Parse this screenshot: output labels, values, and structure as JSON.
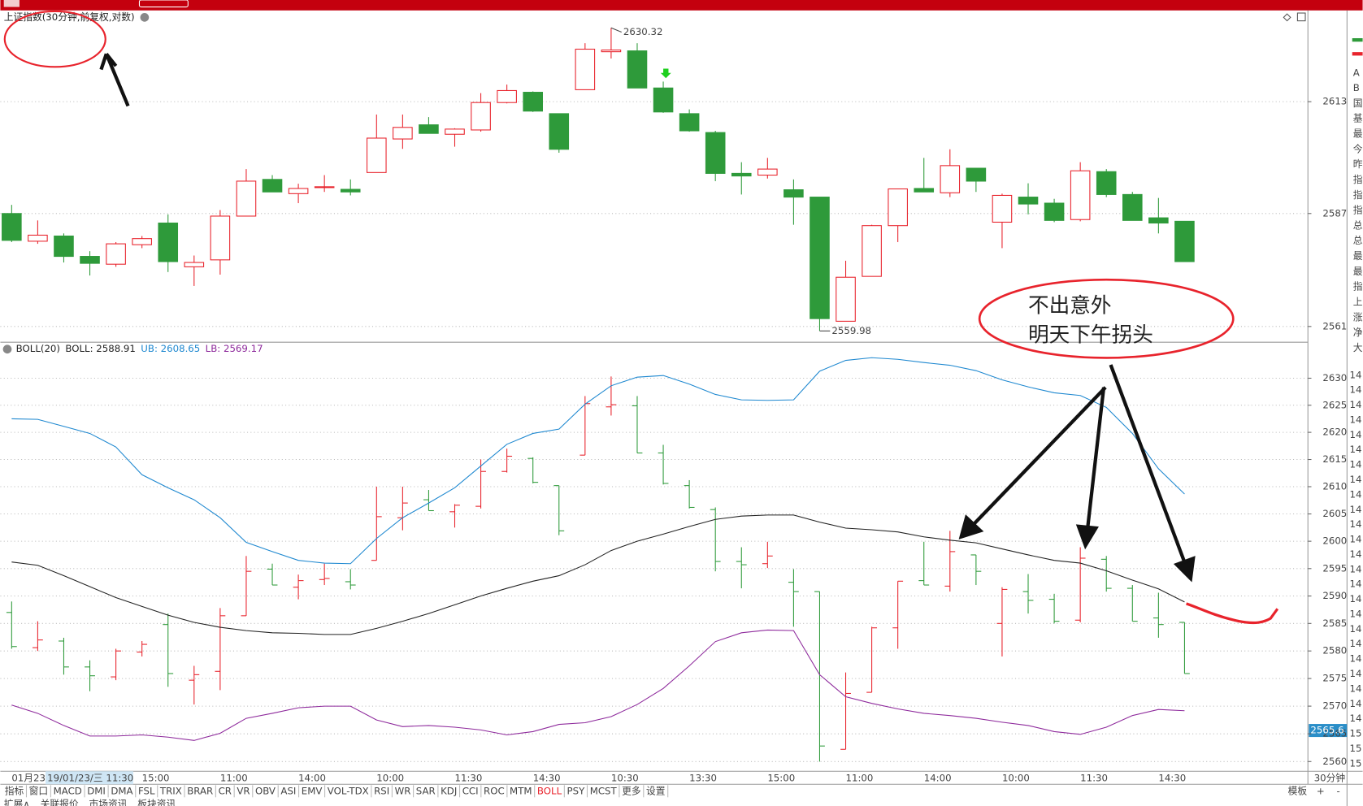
{
  "window": {
    "title": "上证指数(30分钟,前复权,对数)",
    "cursor_date": "19/01/23/三 11:30",
    "period": "30分钟",
    "tabs": [
      "指标",
      "窗口",
      "MACD",
      "DMI",
      "DMA",
      "FSL",
      "TRIX",
      "BRAR",
      "CR",
      "VR",
      "OBV",
      "ASI",
      "EMV",
      "VOL-TDX",
      "RSI",
      "WR",
      "SAR",
      "KDJ",
      "CCI",
      "ROC",
      "MTM",
      "BOLL",
      "PSY",
      "MCST",
      "更多",
      "设置"
    ],
    "active_tab": "BOLL",
    "template": "模板",
    "plus": "+",
    "minus": "-",
    "bottom_tabs": [
      "扩展∧",
      "关联报价",
      "市场资讯",
      "板块资讯"
    ],
    "side_panel": [
      "A",
      "B",
      "国",
      "基",
      "最",
      "今",
      "昨",
      "指",
      "指",
      "指",
      "总",
      "总",
      "最",
      "最",
      "指",
      "上",
      "涨",
      "净",
      "大"
    ],
    "side_numbers": [
      "14",
      "14",
      "14",
      "14",
      "14",
      "14",
      "14",
      "14",
      "14",
      "14",
      "14",
      "14",
      "14",
      "14",
      "14",
      "14",
      "14",
      "14",
      "14",
      "14",
      "14",
      "14",
      "14",
      "14",
      "15",
      "15",
      "15"
    ],
    "annotation": [
      "不出意外",
      "明天下午拐头"
    ]
  },
  "chart_data": [
    {
      "type": "candlestick",
      "log_scale": true,
      "up_color": "#e8232c",
      "down_color": "#2e9a3a",
      "categories": [
        "01月23",
        null,
        null,
        null,
        null,
        "15:00",
        null,
        null,
        "11:00",
        null,
        null,
        "14:00",
        null,
        null,
        "10:00",
        null,
        null,
        "11:30",
        null,
        null,
        "14:30",
        null,
        null,
        "10:30",
        null,
        null,
        "13:30",
        null,
        null,
        "15:00",
        null,
        null,
        "11:00",
        null,
        null,
        "14:00",
        null,
        null,
        "10:00",
        null,
        null,
        "11:30",
        null,
        null,
        "14:30",
        null
      ],
      "open": [
        2587,
        2580.6,
        2581.8,
        2577.1,
        2575.3,
        2579.8,
        2584.8,
        2574.7,
        2576.3,
        2586.4,
        2594.9,
        2591.6,
        2593,
        2592.6,
        2596.5,
        2604.3,
        2607.6,
        2605.4,
        2606.4,
        2612.8,
        2615.2,
        2610.2,
        2615.8,
        2624.7,
        2624.9,
        2616.2,
        2610.2,
        2605.8,
        2596.3,
        2595.9,
        2592.5,
        2590.8,
        2562.2,
        2572.5,
        2584.2,
        2592.8,
        2591.8,
        2597.5,
        2585,
        2590.8,
        2589.4,
        2585.6,
        2596.7,
        2591.4,
        2586,
        2585.2
      ],
      "high": [
        2589,
        2585.4,
        2582.4,
        2578.3,
        2580.4,
        2581.8,
        2586.8,
        2577.3,
        2587.8,
        2597.3,
        2595.9,
        2593.9,
        2595.9,
        2594.9,
        2610,
        2610,
        2609.4,
        2606.8,
        2615,
        2617,
        2615.4,
        2610.2,
        2626.7,
        2630.32,
        2626.7,
        2617.7,
        2611.2,
        2606.2,
        2598.9,
        2599.9,
        2594.9,
        2590.8,
        2576.1,
        2584.4,
        2592.7,
        2599.9,
        2601.9,
        2597.5,
        2591.6,
        2594,
        2590.4,
        2598.9,
        2597.3,
        2592,
        2590.6,
        2585.2
      ],
      "low": [
        2580.4,
        2580,
        2575.7,
        2572.7,
        2574.7,
        2579,
        2573.5,
        2570.3,
        2572.9,
        2586.4,
        2592,
        2589.4,
        2592,
        2591.2,
        2596.5,
        2602,
        2605.6,
        2602.5,
        2606,
        2612.6,
        2610.6,
        2601.1,
        2615.8,
        2623.1,
        2616.2,
        2610.4,
        2606,
        2594.5,
        2591.4,
        2595.1,
        2584.4,
        2559.98,
        2562.2,
        2572.5,
        2580.4,
        2592,
        2590.8,
        2592,
        2579,
        2586.8,
        2585,
        2585.2,
        2590.8,
        2585.4,
        2582.4,
        2575.9
      ],
      "close": [
        2580.8,
        2582,
        2577.1,
        2575.5,
        2580,
        2581.2,
        2575.9,
        2575.7,
        2586.4,
        2594.5,
        2592,
        2592.8,
        2593.2,
        2592,
        2604.5,
        2607,
        2605.6,
        2606.6,
        2612.8,
        2615.6,
        2610.8,
        2601.9,
        2625.3,
        2625.1,
        2616.2,
        2610.6,
        2606.2,
        2596.3,
        2595.7,
        2597.3,
        2590.8,
        2562.8,
        2572.3,
        2584.2,
        2592.7,
        2592,
        2598.1,
        2594.5,
        2591.2,
        2589.2,
        2585.4,
        2596.9,
        2591.4,
        2585.4,
        2584.8,
        2575.9
      ],
      "ylim": [
        2557.8,
        2634
      ],
      "yticks": [
        2561,
        2587,
        2613
      ],
      "grid": true
    },
    {
      "type": "line",
      "title": "BOLL(20)",
      "log_scale": true,
      "series": [
        {
          "name": "BOLL",
          "legend": "BOLL: 2588.91",
          "color": "#222222",
          "values": [
            2596.2,
            2595.6,
            2593.7,
            2591.7,
            2589.7,
            2588.1,
            2586.5,
            2585.2,
            2584.3,
            2583.7,
            2583.3,
            2583.2,
            2583,
            2583,
            2584.1,
            2585.4,
            2586.8,
            2588.4,
            2590,
            2591.4,
            2592.7,
            2593.7,
            2595.7,
            2598.3,
            2600,
            2601.3,
            2602.7,
            2604,
            2604.6,
            2604.8,
            2604.8,
            2603.5,
            2602.4,
            2602.1,
            2601.7,
            2600.8,
            2600.2,
            2599.7,
            2598.6,
            2597.5,
            2596.5,
            2596,
            2594.6,
            2592.9,
            2591.3,
            2588.91
          ]
        },
        {
          "name": "UB",
          "legend": "UB: 2608.65",
          "color": "#1e88d0",
          "values": [
            2622.5,
            2622.4,
            2621.1,
            2619.8,
            2617.3,
            2612.2,
            2609.8,
            2607.6,
            2604.3,
            2599.8,
            2598.1,
            2596.5,
            2596,
            2595.9,
            2600.5,
            2604.3,
            2607,
            2609.8,
            2613.8,
            2617.8,
            2619.8,
            2620.6,
            2625.2,
            2628.6,
            2630.2,
            2630.5,
            2628.9,
            2627,
            2626,
            2625.9,
            2626,
            2631.3,
            2633.3,
            2633.8,
            2633.5,
            2632.9,
            2632.4,
            2631.4,
            2629.7,
            2628.4,
            2627.3,
            2626.8,
            2624.6,
            2619.8,
            2613.3,
            2608.65
          ]
        },
        {
          "name": "LB",
          "legend": "LB: 2569.17",
          "color": "#8e2a9c",
          "values": [
            2570.2,
            2568.7,
            2566.5,
            2564.6,
            2564.6,
            2564.8,
            2564.4,
            2563.8,
            2565.1,
            2567.8,
            2568.7,
            2569.7,
            2570,
            2570,
            2567.5,
            2566.3,
            2566.5,
            2566.2,
            2565.7,
            2564.8,
            2565.4,
            2566.7,
            2567,
            2568.1,
            2570.3,
            2573.2,
            2577.3,
            2581.7,
            2583.3,
            2583.8,
            2583.7,
            2575.7,
            2571.7,
            2570.5,
            2569.5,
            2568.7,
            2568.3,
            2567.8,
            2567.1,
            2566.5,
            2565.4,
            2564.9,
            2566.2,
            2568.3,
            2569.4,
            2569.17
          ]
        }
      ],
      "ylim": [
        2558.25,
        2636.35
      ],
      "yticks": [
        2560,
        2565,
        2570,
        2575,
        2580,
        2585,
        2590,
        2595,
        2600,
        2605,
        2610,
        2615,
        2620,
        2625,
        2630
      ],
      "grid": true,
      "cursor_price": 2565.6
    }
  ]
}
